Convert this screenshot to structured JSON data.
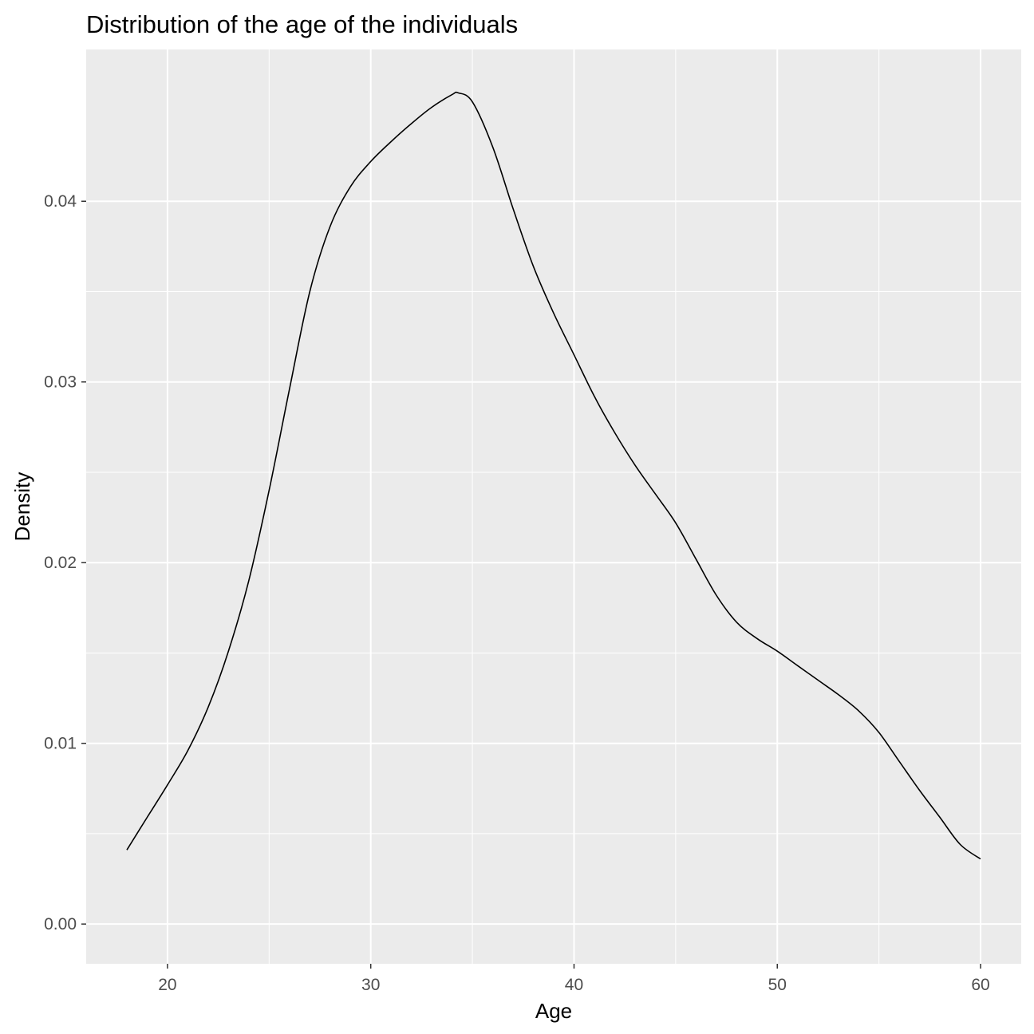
{
  "chart_data": {
    "type": "line",
    "title": "Distribution of the age of the individuals",
    "xlabel": "Age",
    "ylabel": "Density",
    "xlim": [
      16,
      62
    ],
    "ylim": [
      -0.0022,
      0.0484
    ],
    "x_ticks": [
      20,
      30,
      40,
      50,
      60
    ],
    "y_ticks": [
      0.0,
      0.01,
      0.02,
      0.03,
      0.04
    ],
    "x_tick_labels": [
      "20",
      "30",
      "40",
      "50",
      "60"
    ],
    "y_tick_labels": [
      "0.00",
      "0.01",
      "0.02",
      "0.03",
      "0.04"
    ],
    "grid": true,
    "colors": {
      "panel_background": "#ebebeb",
      "grid_line": "#ffffff",
      "line": "#000000",
      "tick_label": "#4d4d4d"
    },
    "series": [
      {
        "x": [
          18,
          19,
          20,
          21,
          22,
          23,
          24,
          25,
          26,
          27,
          28,
          29,
          30,
          31,
          32,
          33,
          34,
          34.3,
          35,
          36,
          37,
          38,
          39,
          40,
          41,
          42,
          43,
          44,
          45,
          46,
          47,
          48,
          49,
          50,
          51,
          52,
          53,
          54,
          55,
          56,
          57,
          58,
          59,
          60
        ],
        "values": [
          0.0041,
          0.0059,
          0.0077,
          0.0096,
          0.012,
          0.0151,
          0.019,
          0.024,
          0.0296,
          0.035,
          0.0386,
          0.0408,
          0.0422,
          0.0433,
          0.0443,
          0.0452,
          0.0459,
          0.046,
          0.0455,
          0.043,
          0.0396,
          0.0364,
          0.0338,
          0.0315,
          0.0292,
          0.0272,
          0.0254,
          0.0238,
          0.0222,
          0.0202,
          0.0182,
          0.0167,
          0.0158,
          0.0151,
          0.0143,
          0.0135,
          0.0127,
          0.0118,
          0.0106,
          0.009,
          0.0074,
          0.0059,
          0.0044,
          0.0036
        ]
      }
    ]
  }
}
